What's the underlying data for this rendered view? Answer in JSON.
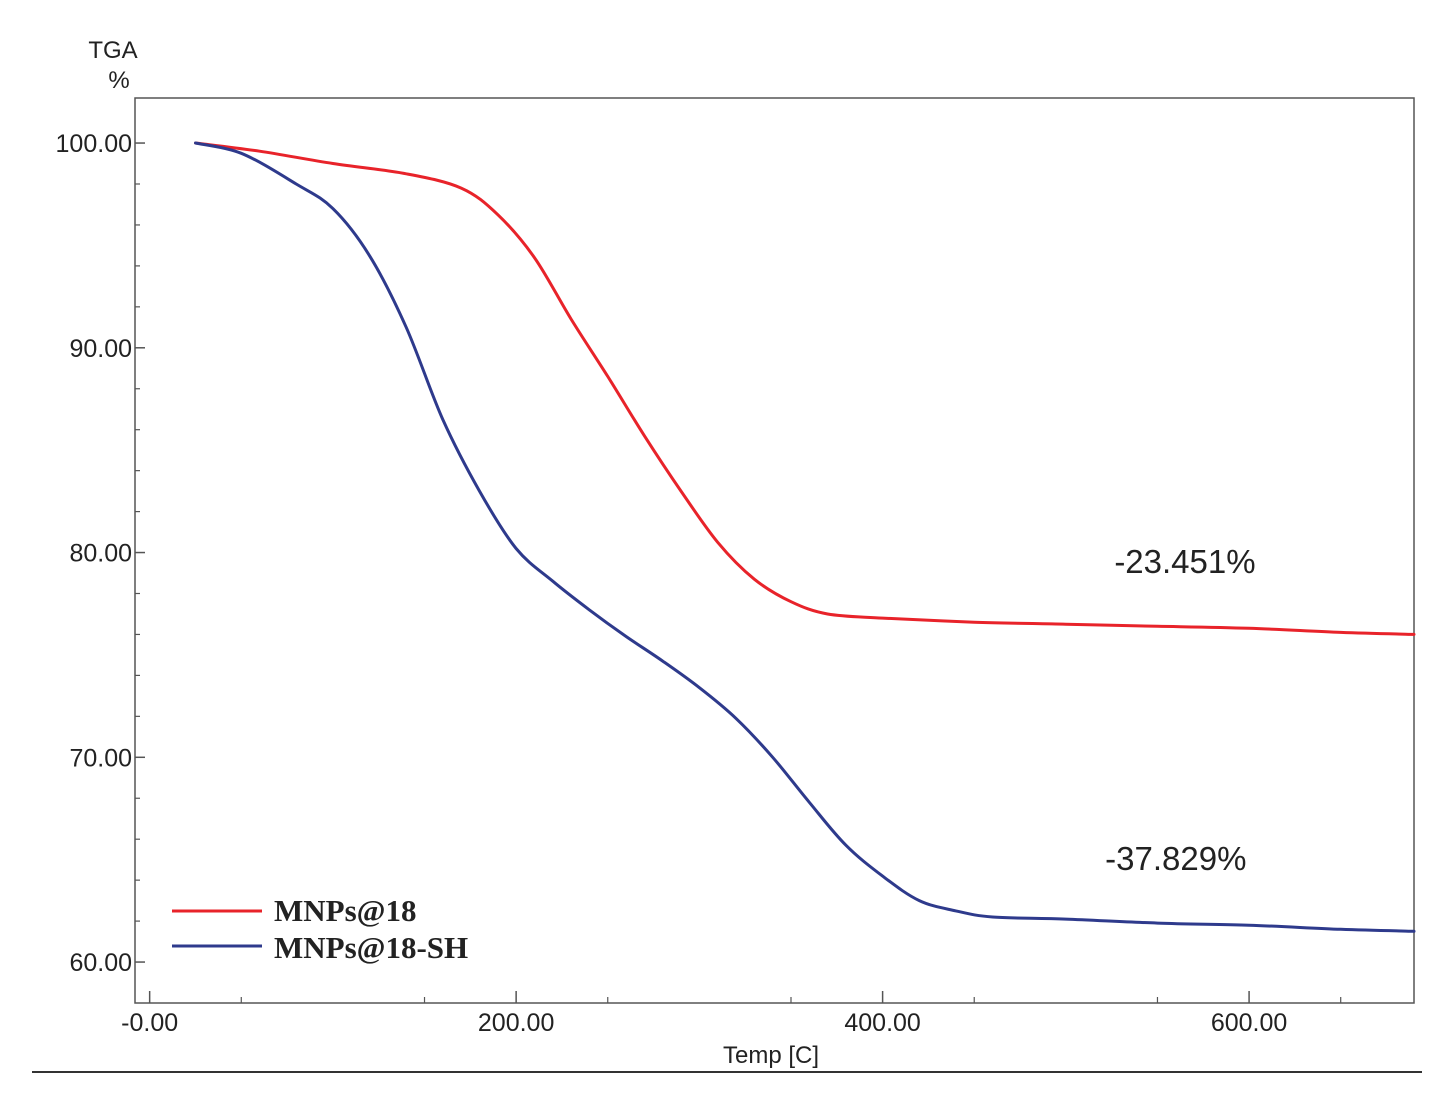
{
  "chart_data": {
    "type": "line",
    "ylabel_line1": "TGA",
    "ylabel_line2": "%",
    "xlabel": "Temp  [C]",
    "xlim": [
      -8,
      690
    ],
    "ylim": [
      58,
      102.2
    ],
    "x_ticks": [
      {
        "value": 0,
        "label": "-0.00"
      },
      {
        "value": 200,
        "label": "200.00"
      },
      {
        "value": 400,
        "label": "400.00"
      },
      {
        "value": 600,
        "label": "600.00"
      }
    ],
    "y_ticks": [
      {
        "value": 60,
        "label": "60.00"
      },
      {
        "value": 70,
        "label": "70.00"
      },
      {
        "value": 80,
        "label": "80.00"
      },
      {
        "value": 90,
        "label": "90.00"
      },
      {
        "value": 100,
        "label": "100.00"
      }
    ],
    "grid": false,
    "legend_position": "bottom-left",
    "series": [
      {
        "name": "MNPs@18",
        "color": "#e8232a",
        "x": [
          25,
          60,
          100,
          140,
          170,
          190,
          210,
          230,
          250,
          270,
          290,
          310,
          330,
          350,
          370,
          400,
          450,
          500,
          550,
          600,
          650,
          690
        ],
        "y": [
          100,
          99.6,
          99.0,
          98.5,
          97.8,
          96.5,
          94.4,
          91.4,
          88.6,
          85.7,
          83.0,
          80.5,
          78.7,
          77.6,
          77.0,
          76.8,
          76.6,
          76.5,
          76.4,
          76.3,
          76.1,
          76.0
        ]
      },
      {
        "name": "MNPs@18-SH",
        "color": "#2e3a8c",
        "x": [
          25,
          50,
          80,
          100,
          120,
          140,
          160,
          180,
          200,
          220,
          240,
          260,
          280,
          300,
          320,
          340,
          360,
          380,
          400,
          420,
          440,
          460,
          500,
          550,
          600,
          650,
          690
        ],
        "y": [
          100,
          99.5,
          98.0,
          96.8,
          94.5,
          91.0,
          86.5,
          83.0,
          80.2,
          78.6,
          77.2,
          75.9,
          74.7,
          73.4,
          71.9,
          70.0,
          67.8,
          65.7,
          64.2,
          63.0,
          62.5,
          62.2,
          62.1,
          61.9,
          61.8,
          61.6,
          61.5
        ]
      }
    ],
    "annotations": [
      {
        "text": "-23.451%",
        "x": 565,
        "y": 79.0
      },
      {
        "text": "-37.829%",
        "x": 560,
        "y": 64.5
      }
    ]
  }
}
